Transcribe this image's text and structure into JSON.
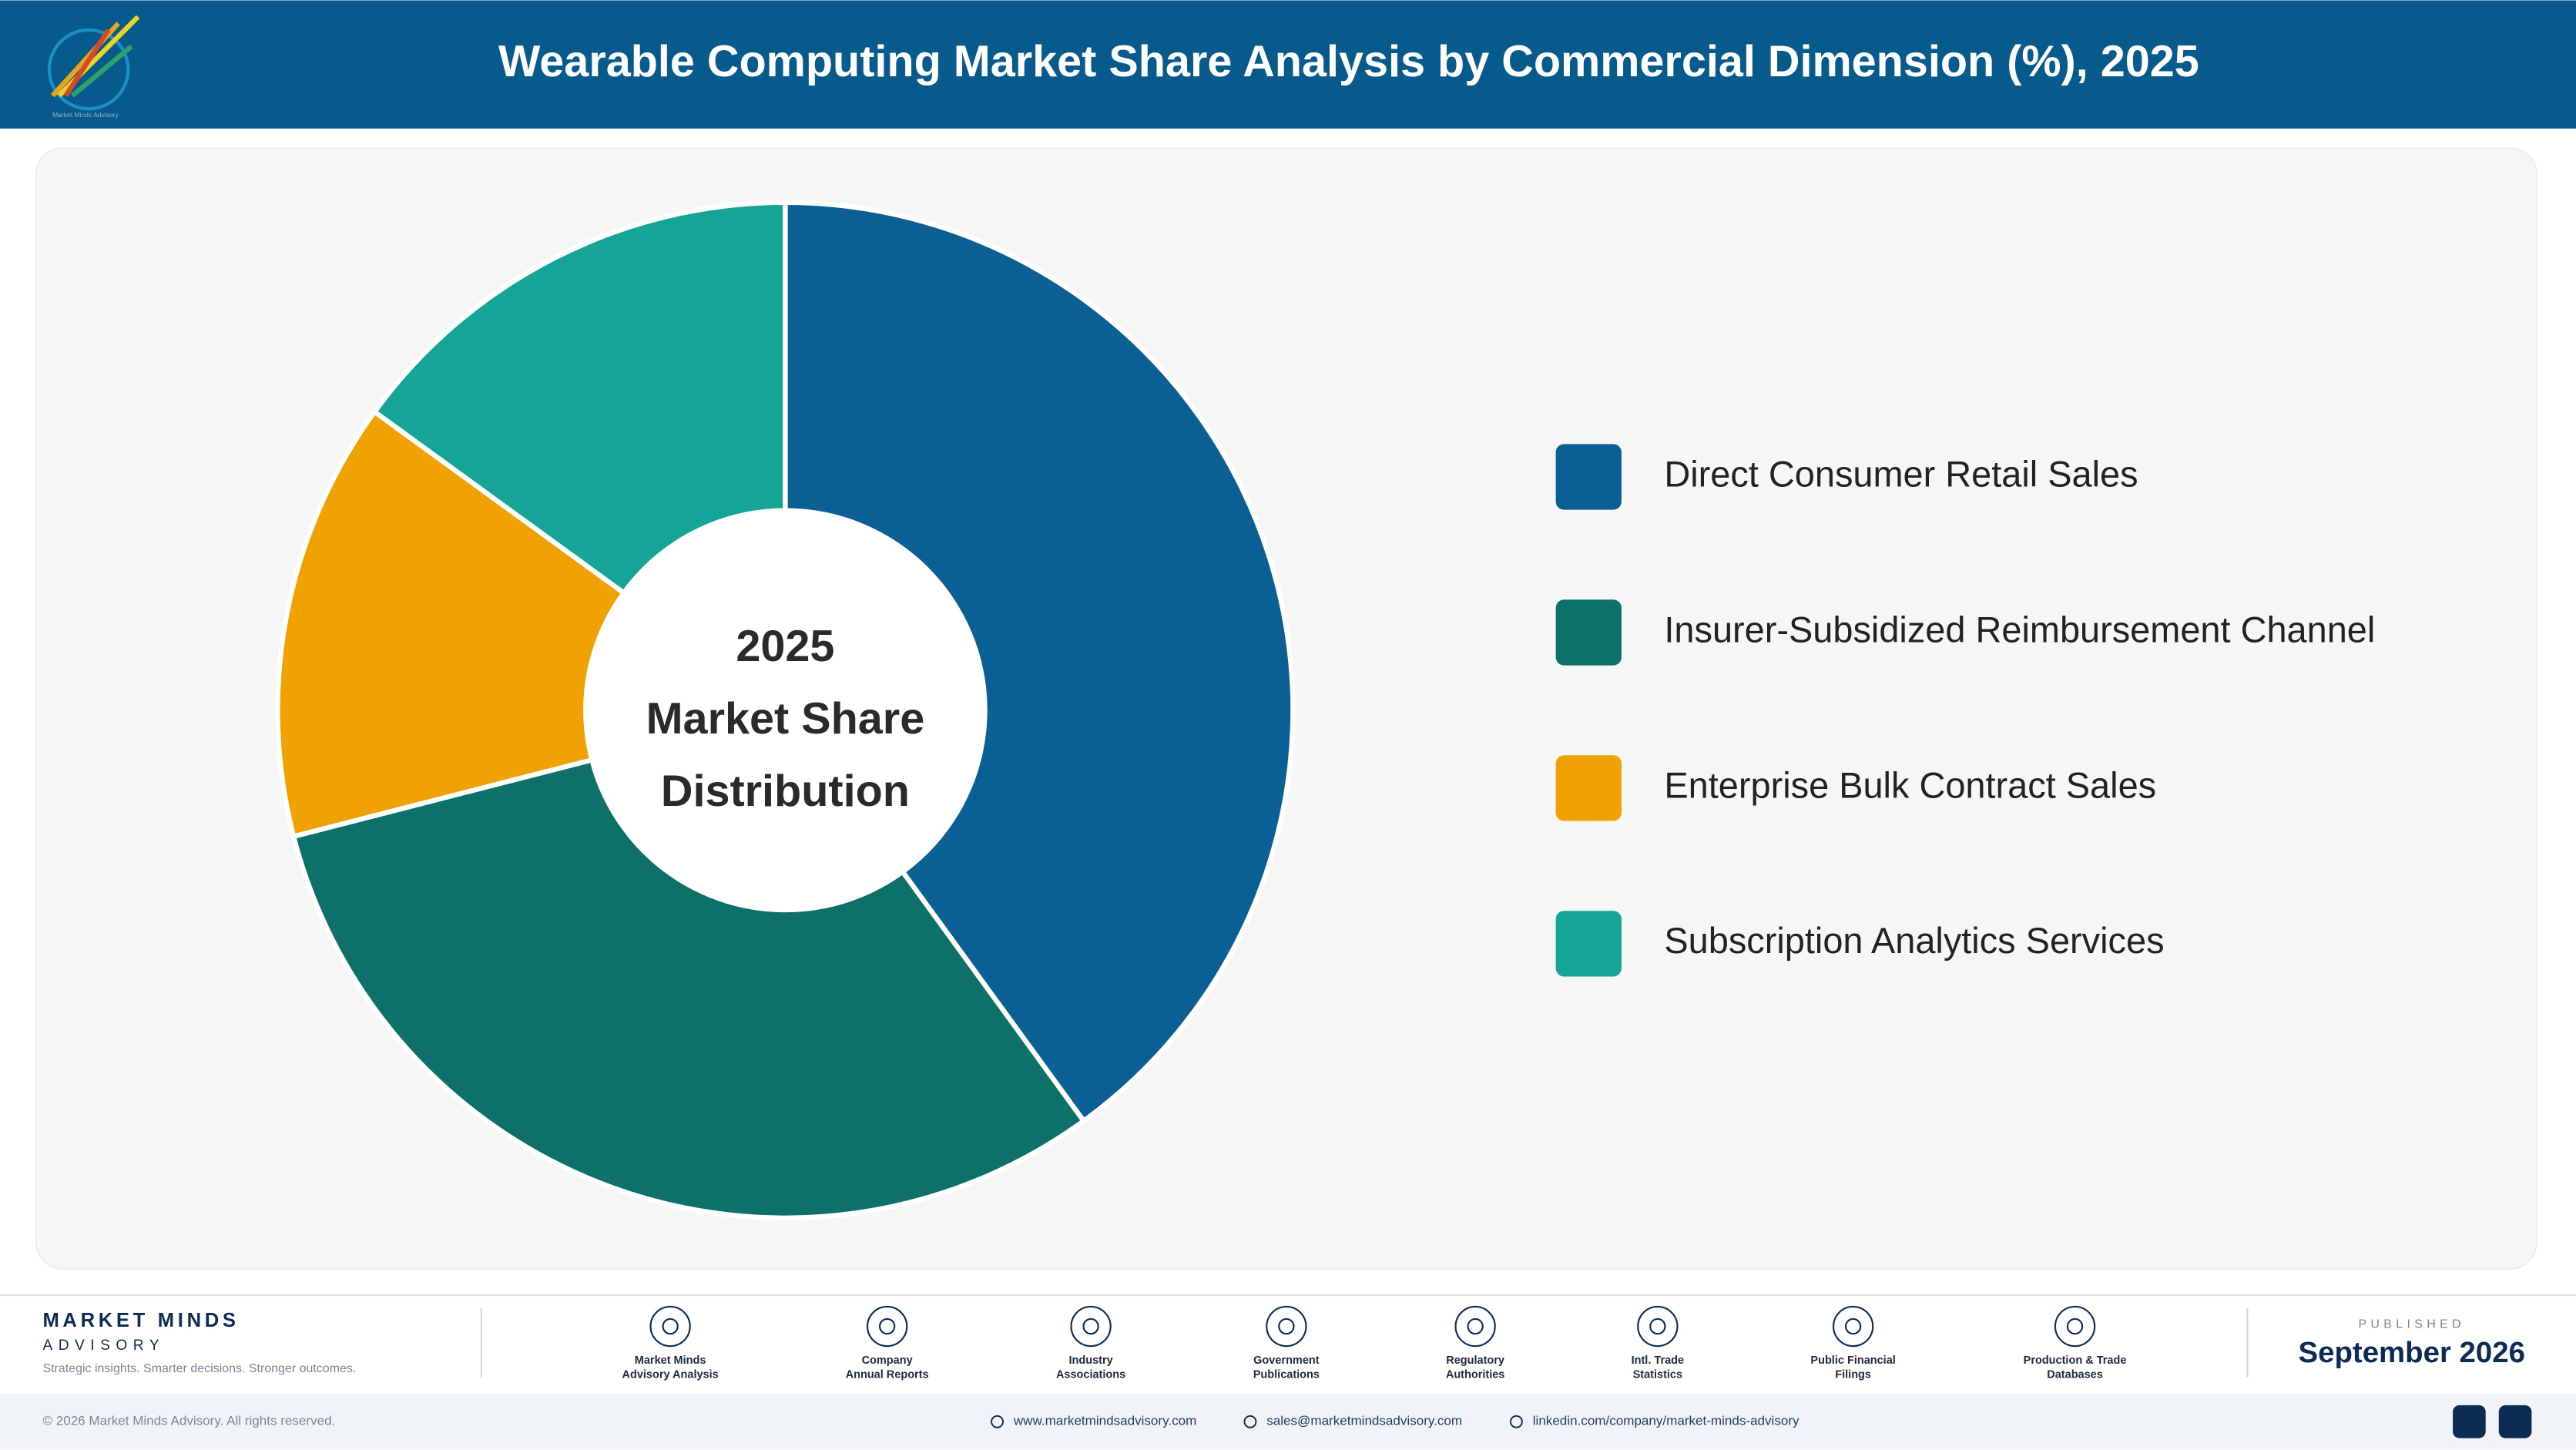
{
  "header": {
    "title": "Wearable Computing Market Share Analysis by Commercial Dimension (%), 2025",
    "logo_text": "Market Minds Advisory"
  },
  "chart_data": {
    "type": "pie",
    "center_label": [
      "2025",
      "Market Share",
      "Distribution"
    ],
    "categories": [
      "Direct Consumer Retail Sales",
      "Insurer-Subsidized Reimbursement Channel",
      "Enterprise Bulk Contract Sales",
      "Subscription Analytics Services"
    ],
    "values": [
      40,
      31,
      14,
      15
    ],
    "colors": [
      "#0a5f94",
      "#0d7169",
      "#f0a202",
      "#14a596"
    ],
    "donut": true,
    "legend": "right"
  },
  "footer": {
    "brand": "MARKET MINDS",
    "brand_sub": "ADVISORY",
    "tagline": "Strategic insights. Smarter decisions. Stronger outcomes.",
    "sources": [
      [
        "Market Minds",
        "Advisory Analysis"
      ],
      [
        "Company",
        "Annual Reports"
      ],
      [
        "Industry",
        "Associations"
      ],
      [
        "Government",
        "Publications"
      ],
      [
        "Regulatory",
        "Authorities"
      ],
      [
        "Intl. Trade",
        "Statistics"
      ],
      [
        "Public Financial",
        "Filings"
      ],
      [
        "Production & Trade",
        "Databases"
      ]
    ],
    "published_label": "PUBLISHED",
    "published_date": "September 2026",
    "copyright": "© 2026 Market Minds Advisory. All rights reserved.",
    "website": "www.marketmindsadvisory.com",
    "email": "sales@marketmindsadvisory.com",
    "linkedin": "linkedin.com/company/market-minds-advisory"
  }
}
